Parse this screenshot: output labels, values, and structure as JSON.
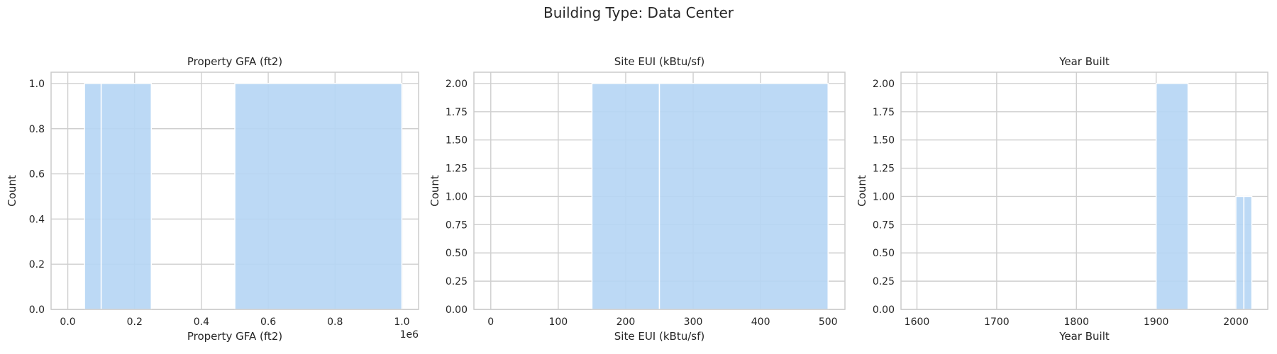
{
  "figure": {
    "suptitle": "Building Type: Data Center"
  },
  "colors": {
    "bar": "#b6d6f4",
    "grid": "#cfcfcf",
    "axis": "#cccccc",
    "text": "#262626"
  },
  "chart_data": [
    {
      "type": "bar",
      "title": "Property GFA (ft2)",
      "xlabel": "Property GFA (ft2)",
      "ylabel": "Count",
      "offset_text": "1e6",
      "xlim": [
        -50000,
        1050000
      ],
      "ylim": [
        0,
        1.05
      ],
      "grid": true,
      "xticks": [
        0,
        200000,
        400000,
        600000,
        800000,
        1000000
      ],
      "xtick_labels": [
        "0.0",
        "0.2",
        "0.4",
        "0.6",
        "0.8",
        "1.0"
      ],
      "yticks": [
        0,
        0.2,
        0.4,
        0.6,
        0.8,
        1.0
      ],
      "ytick_labels": [
        "0.0",
        "0.2",
        "0.4",
        "0.6",
        "0.8",
        "1.0"
      ],
      "bins": [
        {
          "x0": 50000,
          "x1": 100000,
          "count": 1
        },
        {
          "x0": 100000,
          "x1": 250000,
          "count": 1
        },
        {
          "x0": 500000,
          "x1": 1000000,
          "count": 1
        }
      ]
    },
    {
      "type": "bar",
      "title": "Site EUI (kBtu/sf)",
      "xlabel": "Site EUI (kBtu/sf)",
      "ylabel": "Count",
      "xlim": [
        -25,
        525
      ],
      "ylim": [
        0,
        2.1
      ],
      "grid": true,
      "xticks": [
        0,
        100,
        200,
        300,
        400,
        500
      ],
      "xtick_labels": [
        "0",
        "100",
        "200",
        "300",
        "400",
        "500"
      ],
      "yticks": [
        0,
        0.25,
        0.5,
        0.75,
        1.0,
        1.25,
        1.5,
        1.75,
        2.0
      ],
      "ytick_labels": [
        "0.00",
        "0.25",
        "0.50",
        "0.75",
        "1.00",
        "1.25",
        "1.50",
        "1.75",
        "2.00"
      ],
      "bins": [
        {
          "x0": 150,
          "x1": 250,
          "count": 2
        },
        {
          "x0": 250,
          "x1": 500,
          "count": 2
        }
      ]
    },
    {
      "type": "bar",
      "title": "Year Built",
      "xlabel": "Year Built",
      "ylabel": "Count",
      "xlim": [
        1580,
        2040
      ],
      "ylim": [
        0,
        2.1
      ],
      "grid": true,
      "xticks": [
        1600,
        1700,
        1800,
        1900,
        2000
      ],
      "xtick_labels": [
        "1600",
        "1700",
        "1800",
        "1900",
        "2000"
      ],
      "yticks": [
        0,
        0.25,
        0.5,
        0.75,
        1.0,
        1.25,
        1.5,
        1.75,
        2.0
      ],
      "ytick_labels": [
        "0.00",
        "0.25",
        "0.50",
        "0.75",
        "1.00",
        "1.25",
        "1.50",
        "1.75",
        "2.00"
      ],
      "bins": [
        {
          "x0": 1900,
          "x1": 1940,
          "count": 2
        },
        {
          "x0": 2000,
          "x1": 2010,
          "count": 1
        },
        {
          "x0": 2010,
          "x1": 2020,
          "count": 1
        }
      ]
    }
  ]
}
